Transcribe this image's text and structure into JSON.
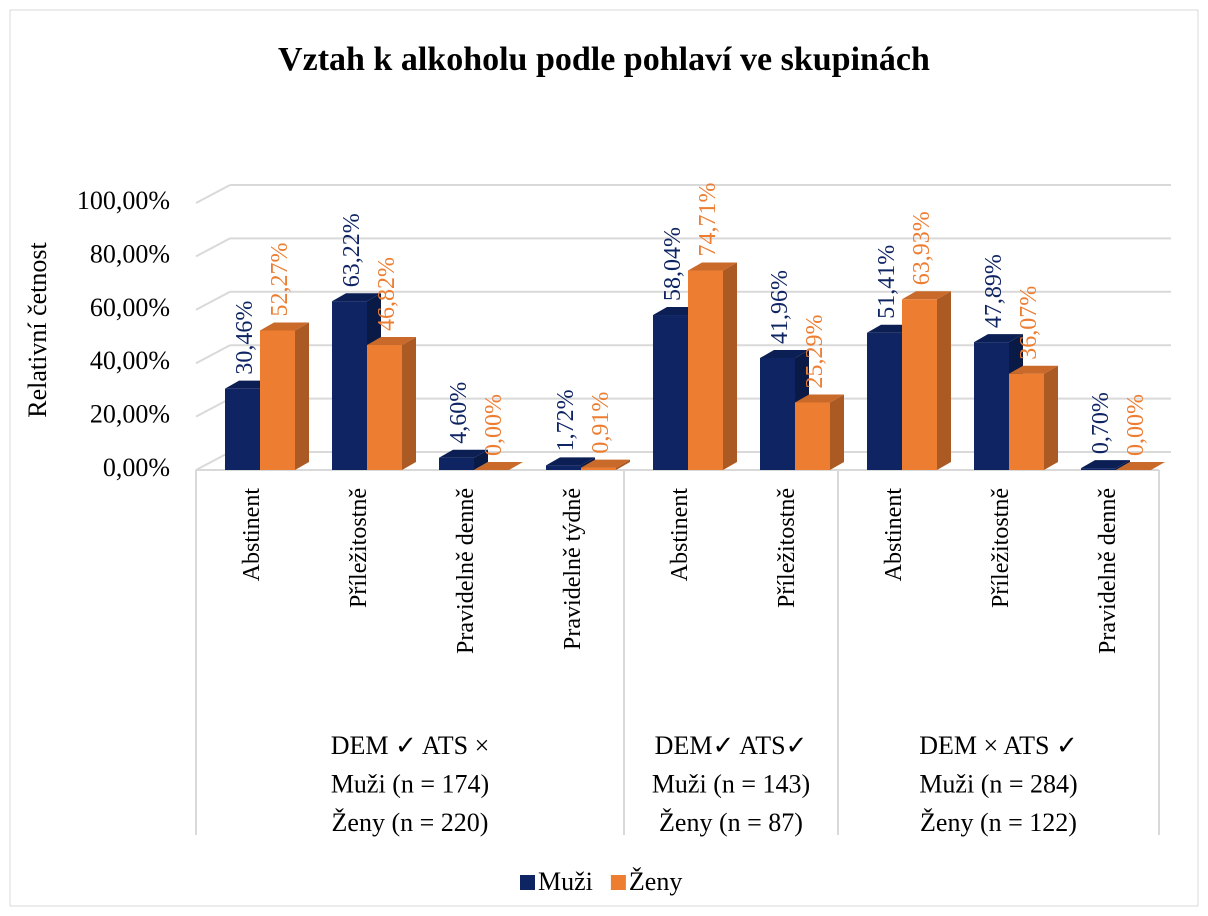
{
  "chart_data": {
    "type": "bar3d",
    "title": "Vztah k alkoholu podle pohlaví ve skupinách",
    "y_label": "Relativní četnost",
    "groups": [
      {
        "lines": [
          "DEM ✓ ATS ×",
          "Muži (n = 174)",
          "Ženy (n = 220)"
        ],
        "categories": [
          "Abstinent",
          "Příležitostně",
          "Pravidelně denně",
          "Pravidelně týdně"
        ]
      },
      {
        "lines": [
          "DEM✓ ATS✓",
          "Muži (n = 143)",
          "Ženy (n = 87)"
        ],
        "categories": [
          "Abstinent",
          "Příležitostně"
        ]
      },
      {
        "lines": [
          "DEM × ATS ✓",
          "Muži (n = 284)",
          "Ženy (n = 122)"
        ],
        "categories": [
          "Abstinent",
          "Příležitostně",
          "Pravidelně denně"
        ]
      }
    ],
    "series": [
      {
        "name": "Muži",
        "color": "#0e2463",
        "values": [
          30.46,
          63.22,
          4.6,
          1.72,
          58.04,
          41.96,
          51.41,
          47.89,
          0.7
        ],
        "value_labels": [
          "30,46%",
          "63,22%",
          "4,60%",
          "1,72%",
          "58,04%",
          "41,96%",
          "51,41%",
          "47,89%",
          "0,70%"
        ]
      },
      {
        "name": "Ženy",
        "color": "#ed7d31",
        "values": [
          52.27,
          46.82,
          0.0,
          0.91,
          74.71,
          25.29,
          63.93,
          36.07,
          0.0
        ],
        "value_labels": [
          "52,27%",
          "46,82%",
          "0,00%",
          "0,91%",
          "74,71%",
          "25,29%",
          "63,93%",
          "36,07%",
          "0,00%"
        ]
      }
    ],
    "ylim": [
      0,
      100
    ],
    "yticks": [
      {
        "value": 0,
        "label": "0,00%"
      },
      {
        "value": 20,
        "label": "20,00%"
      },
      {
        "value": 40,
        "label": "40,00%"
      },
      {
        "value": 60,
        "label": "60,00%"
      },
      {
        "value": 80,
        "label": "80,00%"
      },
      {
        "value": 100,
        "label": "100,00%"
      }
    ],
    "grid": true,
    "legend": "bottom"
  }
}
